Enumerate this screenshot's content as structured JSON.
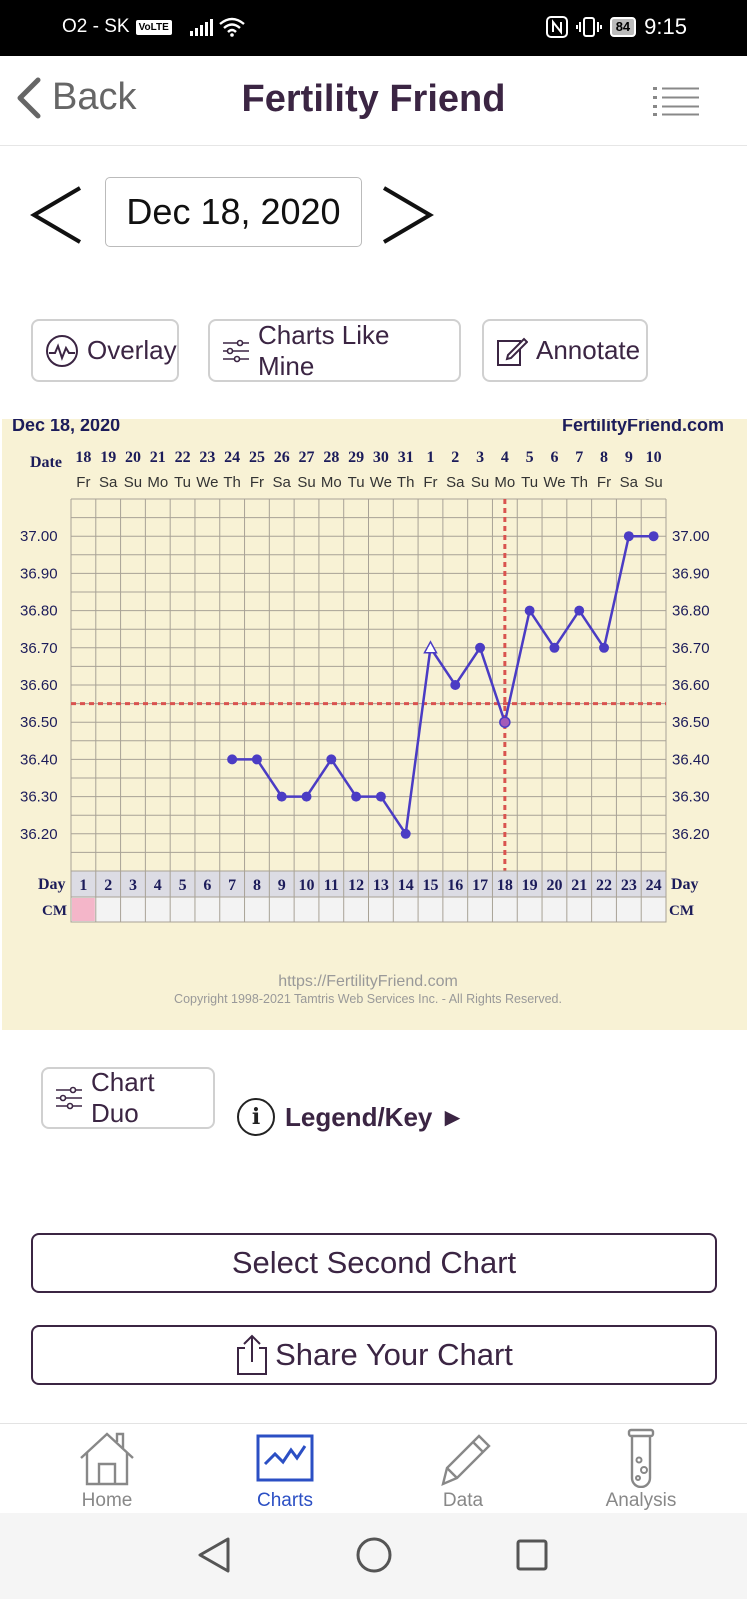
{
  "status_bar": {
    "carrier": "O2 - SK",
    "volte": "VoLTE",
    "battery": "84",
    "time": "9:15"
  },
  "header": {
    "back_label": "Back",
    "title": "Fertility Friend"
  },
  "date_nav": {
    "date": "Dec 18, 2020"
  },
  "actions": {
    "overlay": "Overlay",
    "charts_like_mine": "Charts Like Mine",
    "annotate": "Annotate"
  },
  "chart_data": {
    "type": "line",
    "header_date": "Dec 18, 2020",
    "site": "FertilityFriend.com",
    "row_labels": {
      "date": "Date",
      "day": "Day",
      "cm": "CM"
    },
    "dates": [
      "18",
      "19",
      "20",
      "21",
      "22",
      "23",
      "24",
      "25",
      "26",
      "27",
      "28",
      "29",
      "30",
      "31",
      "1",
      "2",
      "3",
      "4",
      "5",
      "6",
      "7",
      "8",
      "9",
      "10"
    ],
    "weekdays": [
      "Fr",
      "Sa",
      "Su",
      "Mo",
      "Tu",
      "We",
      "Th",
      "Fr",
      "Sa",
      "Su",
      "Mo",
      "Tu",
      "We",
      "Th",
      "Fr",
      "Sa",
      "Su",
      "Mo",
      "Tu",
      "We",
      "Th",
      "Fr",
      "Sa",
      "Su"
    ],
    "days": [
      "1",
      "2",
      "3",
      "4",
      "5",
      "6",
      "7",
      "8",
      "9",
      "10",
      "11",
      "12",
      "13",
      "14",
      "15",
      "16",
      "17",
      "18",
      "19",
      "20",
      "21",
      "22",
      "23",
      "24"
    ],
    "y_ticks": [
      "37.00",
      "36.90",
      "36.80",
      "36.70",
      "36.60",
      "36.50",
      "36.40",
      "36.30",
      "36.20"
    ],
    "ylim": [
      36.1,
      37.1
    ],
    "series": [
      {
        "values": [
          null,
          null,
          null,
          null,
          null,
          null,
          36.4,
          36.4,
          36.3,
          36.3,
          36.4,
          36.3,
          36.3,
          36.2,
          36.7,
          36.6,
          36.7,
          36.5,
          36.8,
          36.7,
          36.8,
          36.7,
          37.0,
          37.0
        ],
        "color": "#4b3cc4"
      }
    ],
    "open_marker_day": 15,
    "coverline": 36.55,
    "ovulation_day": 18,
    "cm_highlight_day": 1,
    "cm_highlight_color": "#f4b6c9",
    "line_color": "#4b3cc4",
    "coverline_color": "#d9534f",
    "footer_url": "https://FertilityFriend.com",
    "footer_copyright": "Copyright 1998-2021 Tamtris Web Services Inc. - All Rights Reserved."
  },
  "below_chart": {
    "chart_duo": "Chart Duo",
    "legend": "Legend/Key ►"
  },
  "buttons": {
    "select_second": "Select Second Chart",
    "share": "Share Your Chart"
  },
  "tabs": [
    {
      "label": "Home",
      "icon": "home-icon"
    },
    {
      "label": "Charts",
      "icon": "chart-icon",
      "active": true
    },
    {
      "label": "Data",
      "icon": "pencil-icon"
    },
    {
      "label": "Analysis",
      "icon": "test-tube-icon"
    }
  ],
  "colors": {
    "accent": "#3b2543",
    "tab_active": "#2b4fc4",
    "chart_bg": "#f8f2d5"
  }
}
